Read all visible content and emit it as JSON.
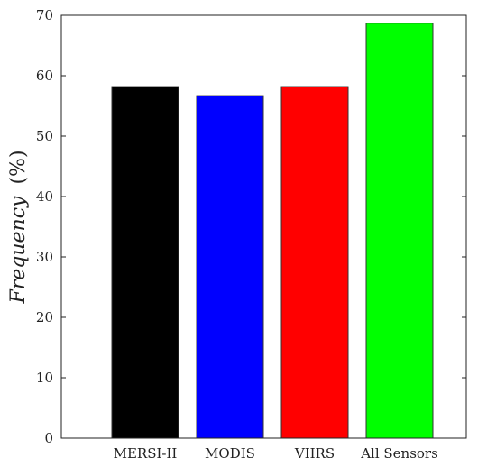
{
  "chart_data": {
    "type": "bar",
    "categories": [
      "MERSI-II",
      "MODIS",
      "VIIRS",
      "All Sensors"
    ],
    "values": [
      58.2,
      56.7,
      58.2,
      68.7
    ],
    "colors": [
      "#000000",
      "#0000ff",
      "#ff0000",
      "#00ff00"
    ],
    "title": "",
    "xlabel": "",
    "ylabel": {
      "main": "Frequency",
      "unit": "(%)"
    },
    "ylim": [
      0,
      70
    ],
    "yticks": [
      "0",
      "10",
      "20",
      "30",
      "40",
      "50",
      "60",
      "70"
    ],
    "grid": false,
    "legend": "none"
  }
}
